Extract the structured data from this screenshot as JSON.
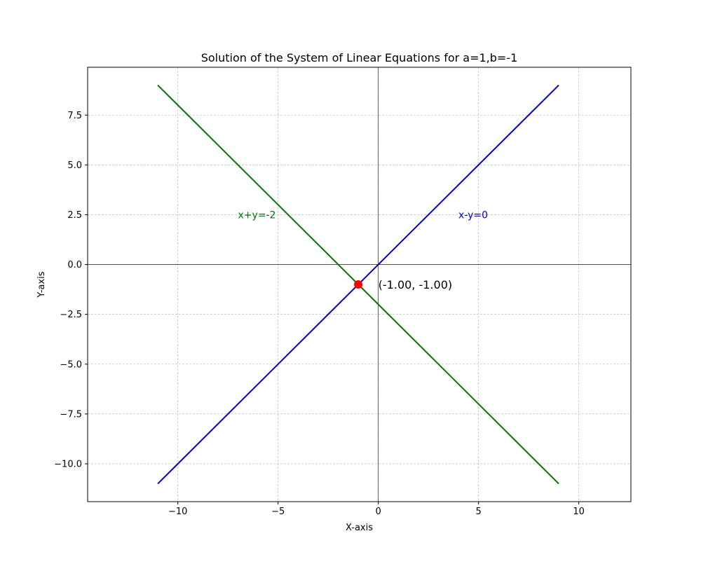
{
  "chart_data": {
    "type": "line",
    "title": "Solution of the System of Linear Equations for a=1,b=-1",
    "xlabel": "X-axis",
    "ylabel": "Y-axis",
    "xlim": [
      -14.5,
      12.6
    ],
    "ylim": [
      -11.9,
      9.9
    ],
    "xticks": [
      -10,
      -5,
      0,
      5,
      10
    ],
    "xtick_labels": [
      "−10",
      "−5",
      "0",
      "5",
      "10"
    ],
    "yticks": [
      -10,
      -7.5,
      -5,
      -2.5,
      0,
      2.5,
      5,
      7.5
    ],
    "ytick_labels": [
      "−10.0",
      "−7.5",
      "−5.0",
      "−2.5",
      "0.0",
      "2.5",
      "5.0",
      "7.5"
    ],
    "grid": true,
    "series": [
      {
        "name": "x-y=0",
        "color": "#0000cc",
        "x": [
          -11,
          9
        ],
        "y": [
          -11,
          9
        ],
        "label_at": [
          4,
          2.5
        ]
      },
      {
        "name": "x+y=-2",
        "color": "#007700",
        "x": [
          -11,
          9
        ],
        "y": [
          9,
          -11
        ],
        "label_at": [
          -7,
          2.5
        ]
      }
    ],
    "solution": {
      "x": -1,
      "y": -1,
      "label": "(-1.00, -1.00)",
      "color": "#ff0000"
    }
  }
}
